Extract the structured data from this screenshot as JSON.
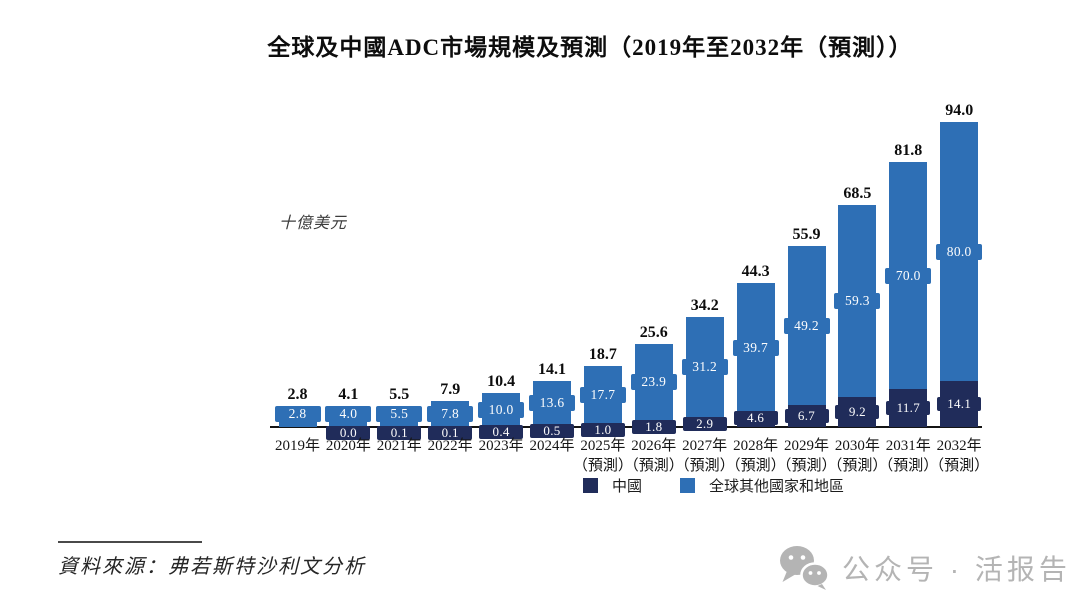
{
  "title": "全球及中國ADC市場規模及預測（2019年至2032年（預測））",
  "y_axis_label": "十億美元",
  "legend": [
    {
      "label": "中國",
      "color_key": "china"
    },
    {
      "label": "全球其他國家和地區",
      "color_key": "global"
    }
  ],
  "source": {
    "text": "資料來源：弗若斯特沙利文分析"
  },
  "watermark": {
    "icon": "wechat-logo",
    "text": "公众号 · 活报告"
  },
  "colors": {
    "china": "#202c5a",
    "global": "#2e6fb5",
    "axis": "#141414",
    "total_label": "#0d0d0d",
    "watermark": "#b4b4b4"
  },
  "chart_data": {
    "type": "bar",
    "stacked": true,
    "title": "全球及中國ADC市場規模及預測（2019年至2032年（預測））",
    "ylabel": "十億美元",
    "ylim": [
      0,
      100
    ],
    "grid": false,
    "legend_position": "bottom",
    "categories": [
      "2019年",
      "2020年",
      "2021年",
      "2022年",
      "2023年",
      "2024年",
      "2025年",
      "2026年",
      "2027年",
      "2028年",
      "2029年",
      "2030年",
      "2031年",
      "2032年"
    ],
    "forecast_note": "（預測）",
    "forecast_start_index": 6,
    "series": [
      {
        "name": "中國",
        "color": "#202c5a",
        "values": [
          0.0,
          0.0,
          0.1,
          0.1,
          0.4,
          0.5,
          1.0,
          1.8,
          2.9,
          4.6,
          6.7,
          9.2,
          11.7,
          14.1
        ],
        "labels": [
          "",
          "0.0",
          "0.1",
          "0.1",
          "0.4",
          "0.5",
          "1.0",
          "1.8",
          "2.9",
          "4.6",
          "6.7",
          "9.2",
          "11.7",
          "14.1"
        ]
      },
      {
        "name": "全球其他國家和地區",
        "color": "#2e6fb5",
        "values": [
          2.8,
          4.0,
          5.5,
          7.8,
          10.0,
          13.6,
          17.7,
          23.9,
          31.2,
          39.7,
          49.2,
          59.3,
          70.0,
          80.0
        ],
        "labels": [
          "2.8",
          "4.0",
          "5.5",
          "7.8",
          "10.0",
          "13.6",
          "17.7",
          "23.9",
          "31.2",
          "39.7",
          "49.2",
          "59.3",
          "70.0",
          "80.0"
        ]
      }
    ],
    "totals": [
      "2.8",
      "4.1",
      "5.5",
      "7.9",
      "10.4",
      "14.1",
      "18.7",
      "25.6",
      "34.2",
      "44.3",
      "55.9",
      "68.5",
      "81.8",
      "94.0"
    ]
  }
}
